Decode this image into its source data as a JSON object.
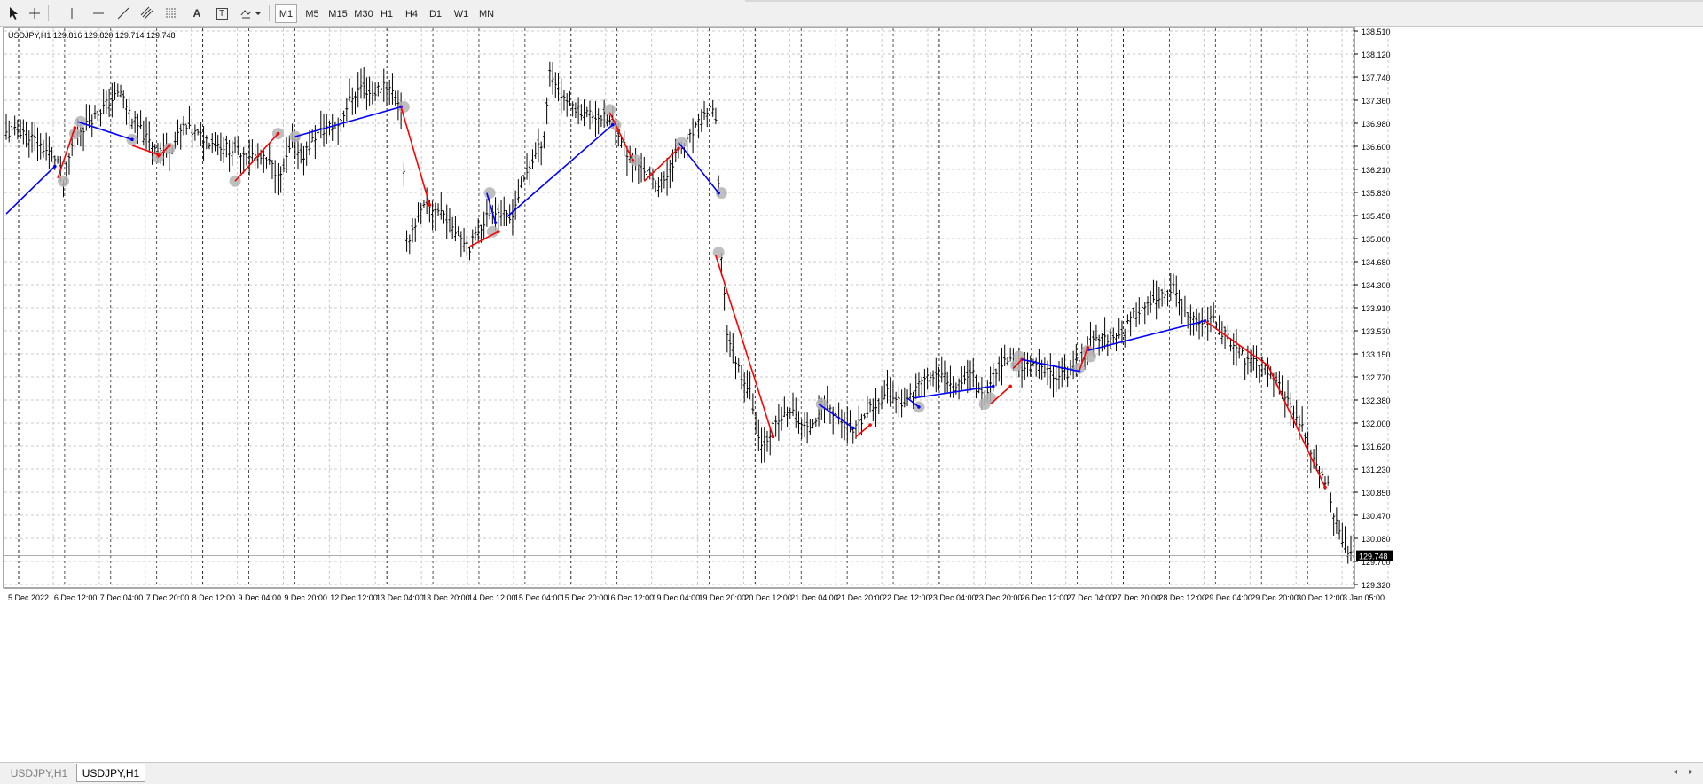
{
  "toolbar": {
    "tools": [
      {
        "name": "cursor-tool-button",
        "icon": "cursor-arrow-icon"
      },
      {
        "name": "crosshair-tool-button",
        "icon": "crosshair-icon"
      },
      {
        "name": "vertical-line-tool-button",
        "icon": "vertical-line-icon"
      },
      {
        "name": "horizontal-line-tool-button",
        "icon": "horizontal-line-icon"
      },
      {
        "name": "trendline-tool-button",
        "icon": "trendline-icon"
      },
      {
        "name": "channels-tool-button",
        "icon": "channel-icon"
      },
      {
        "name": "fibonacci-tool-button",
        "icon": "fibonacci-icon"
      },
      {
        "name": "text-tool-button",
        "icon": "text-icon",
        "label": "A"
      },
      {
        "name": "text-label-tool-button",
        "icon": "text-label-icon",
        "label": "T"
      },
      {
        "name": "shapes-tool-button",
        "icon": "shapes-dropdown-icon"
      }
    ],
    "timeframes": [
      "M1",
      "M5",
      "M15",
      "M30",
      "H1",
      "H4",
      "D1",
      "W1",
      "MN"
    ],
    "active_timeframe": "M1"
  },
  "chart_info": {
    "symbol_line": "USDJPY,H1  129.816 129.820 129.714 129.748"
  },
  "colors": {
    "bear_leg": "#ff0000",
    "bull_leg": "#0000ff",
    "candle": "#000000",
    "marker": "#b4b4b4",
    "grid": "#c8c8c8",
    "price_tag_bg": "#000000"
  },
  "chart_data": {
    "type": "line",
    "symbol": "USDJPY",
    "timeframe": "H1",
    "price_axis_labels": [
      "138.510",
      "138.120",
      "137.740",
      "137.360",
      "136.980",
      "136.600",
      "136.210",
      "135.830",
      "135.450",
      "135.060",
      "134.680",
      "134.300",
      "133.910",
      "133.530",
      "133.150",
      "132.770",
      "132.380",
      "132.000",
      "131.620",
      "131.230",
      "130.850",
      "130.470",
      "130.080",
      "129.700",
      "129.320"
    ],
    "current_price_tag": "129.748",
    "current_price": 129.748,
    "ylim": [
      129.22,
      138.65
    ],
    "time_axis_labels": [
      "5 Dec 2022",
      "6 Dec 12:00",
      "7 Dec 04:00",
      "7 Dec 20:00",
      "8 Dec 12:00",
      "9 Dec 04:00",
      "9 Dec 20:00",
      "12 Dec 12:00",
      "13 Dec 04:00",
      "13 Dec 20:00",
      "14 Dec 12:00",
      "15 Dec 04:00",
      "15 Dec 20:00",
      "16 Dec 12:00",
      "19 Dec 04:00",
      "19 Dec 20:00",
      "20 Dec 12:00",
      "21 Dec 04:00",
      "21 Dec 20:00",
      "22 Dec 12:00",
      "23 Dec 04:00",
      "23 Dec 20:00",
      "26 Dec 12:00",
      "27 Dec 04:00",
      "27 Dec 20:00",
      "28 Dec 12:00",
      "29 Dec 04:00",
      "29 Dec 20:00",
      "30 Dec 12:00",
      "3 Jan 05:00"
    ],
    "x_range_bars": [
      0,
      470
    ],
    "price_path": [
      [
        0,
        136.85
      ],
      [
        6,
        136.9
      ],
      [
        12,
        136.65
      ],
      [
        18,
        136.4
      ],
      [
        20,
        136.0
      ],
      [
        24,
        136.85
      ],
      [
        28,
        137.0
      ],
      [
        34,
        137.3
      ],
      [
        40,
        137.55
      ],
      [
        44,
        137.1
      ],
      [
        50,
        136.7
      ],
      [
        55,
        136.55
      ],
      [
        58,
        136.65
      ],
      [
        62,
        136.95
      ],
      [
        70,
        136.75
      ],
      [
        78,
        136.6
      ],
      [
        82,
        136.55
      ],
      [
        88,
        136.45
      ],
      [
        92,
        136.35
      ],
      [
        96,
        136.1
      ],
      [
        100,
        136.7
      ],
      [
        104,
        136.5
      ],
      [
        108,
        136.8
      ],
      [
        112,
        136.95
      ],
      [
        116,
        137.0
      ],
      [
        120,
        137.4
      ],
      [
        124,
        137.65
      ],
      [
        128,
        137.5
      ],
      [
        132,
        137.7
      ],
      [
        136,
        137.5
      ],
      [
        138,
        137.3
      ],
      [
        140,
        135.0
      ],
      [
        142,
        135.25
      ],
      [
        146,
        135.6
      ],
      [
        152,
        135.55
      ],
      [
        158,
        135.2
      ],
      [
        162,
        134.95
      ],
      [
        166,
        135.3
      ],
      [
        170,
        135.6
      ],
      [
        176,
        135.4
      ],
      [
        182,
        136.2
      ],
      [
        188,
        136.8
      ],
      [
        190,
        137.9
      ],
      [
        194,
        137.5
      ],
      [
        200,
        137.25
      ],
      [
        206,
        137.15
      ],
      [
        210,
        137.1
      ],
      [
        214,
        136.9
      ],
      [
        218,
        136.4
      ],
      [
        222,
        136.3
      ],
      [
        226,
        136.05
      ],
      [
        230,
        136.0
      ],
      [
        234,
        136.5
      ],
      [
        238,
        136.7
      ],
      [
        242,
        137.0
      ],
      [
        246,
        137.3
      ],
      [
        248,
        137.05
      ],
      [
        250,
        134.8
      ],
      [
        252,
        133.5
      ],
      [
        256,
        132.9
      ],
      [
        260,
        132.5
      ],
      [
        264,
        131.6
      ],
      [
        268,
        131.9
      ],
      [
        274,
        132.2
      ],
      [
        280,
        131.85
      ],
      [
        286,
        132.35
      ],
      [
        292,
        132.0
      ],
      [
        296,
        131.8
      ],
      [
        302,
        132.2
      ],
      [
        308,
        132.5
      ],
      [
        314,
        132.3
      ],
      [
        320,
        132.7
      ],
      [
        326,
        132.8
      ],
      [
        332,
        132.65
      ],
      [
        338,
        132.85
      ],
      [
        342,
        132.4
      ],
      [
        346,
        132.9
      ],
      [
        350,
        133.05
      ],
      [
        354,
        132.95
      ],
      [
        360,
        132.9
      ],
      [
        366,
        132.8
      ],
      [
        372,
        132.85
      ],
      [
        376,
        133.2
      ],
      [
        382,
        133.4
      ],
      [
        390,
        133.5
      ],
      [
        396,
        133.9
      ],
      [
        402,
        134.0
      ],
      [
        408,
        134.25
      ],
      [
        412,
        133.8
      ],
      [
        416,
        133.65
      ],
      [
        422,
        133.7
      ],
      [
        428,
        133.35
      ],
      [
        434,
        133.0
      ],
      [
        440,
        132.95
      ],
      [
        446,
        132.55
      ],
      [
        450,
        132.1
      ],
      [
        454,
        131.8
      ],
      [
        458,
        131.25
      ],
      [
        462,
        130.9
      ],
      [
        466,
        130.1
      ],
      [
        470,
        129.75
      ]
    ],
    "zigzag_legs": [
      {
        "color": "blue",
        "from": [
          0,
          135.5
        ],
        "to": [
          17,
          136.3
        ]
      },
      {
        "color": "red",
        "from": [
          18,
          136.1
        ],
        "to": [
          24,
          136.95
        ]
      },
      {
        "color": "blue",
        "from": [
          25,
          137.05
        ],
        "to": [
          44,
          136.75
        ]
      },
      {
        "color": "red",
        "from": [
          44,
          136.65
        ],
        "to": [
          53,
          136.5
        ]
      },
      {
        "color": "red",
        "from": [
          53,
          136.45
        ],
        "to": [
          57,
          136.65
        ]
      },
      {
        "color": "red",
        "from": [
          80,
          136.05
        ],
        "to": [
          95,
          136.85
        ]
      },
      {
        "color": "blue",
        "from": [
          101,
          136.8
        ],
        "to": [
          138,
          137.3
        ]
      },
      {
        "color": "red",
        "from": [
          138,
          137.3
        ],
        "to": [
          148,
          135.65
        ]
      },
      {
        "color": "red",
        "from": [
          162,
          134.95
        ],
        "to": [
          172,
          135.2
        ]
      },
      {
        "color": "blue",
        "from": [
          168,
          135.85
        ],
        "to": [
          171,
          135.35
        ]
      },
      {
        "color": "blue",
        "from": [
          175,
          135.45
        ],
        "to": [
          212,
          137.0
        ]
      },
      {
        "color": "red",
        "from": [
          211,
          137.2
        ],
        "to": [
          214,
          136.9
        ]
      },
      {
        "color": "red",
        "from": [
          214,
          136.9
        ],
        "to": [
          219,
          136.4
        ]
      },
      {
        "color": "red",
        "from": [
          223,
          136.05
        ],
        "to": [
          235,
          136.6
        ]
      },
      {
        "color": "blue",
        "from": [
          235,
          136.7
        ],
        "to": [
          249,
          135.85
        ]
      },
      {
        "color": "red",
        "from": [
          248,
          134.8
        ],
        "to": [
          268,
          131.75
        ]
      },
      {
        "color": "blue",
        "from": [
          284,
          132.3
        ],
        "to": [
          296,
          131.9
        ]
      },
      {
        "color": "red",
        "from": [
          297,
          131.75
        ],
        "to": [
          302,
          131.95
        ]
      },
      {
        "color": "blue",
        "from": [
          315,
          132.4
        ],
        "to": [
          319,
          132.25
        ]
      },
      {
        "color": "blue",
        "from": [
          317,
          132.4
        ],
        "to": [
          345,
          132.6
        ]
      },
      {
        "color": "red",
        "from": [
          344,
          132.3
        ],
        "to": [
          351,
          132.6
        ]
      },
      {
        "color": "red",
        "from": [
          352,
          132.9
        ],
        "to": [
          355,
          133.05
        ]
      },
      {
        "color": "blue",
        "from": [
          355,
          133.05
        ],
        "to": [
          375,
          132.85
        ]
      },
      {
        "color": "red",
        "from": [
          375,
          132.85
        ],
        "to": [
          378,
          133.25
        ]
      },
      {
        "color": "blue",
        "from": [
          378,
          133.2
        ],
        "to": [
          419,
          133.7
        ]
      },
      {
        "color": "red",
        "from": [
          419,
          133.7
        ],
        "to": [
          441,
          132.95
        ]
      },
      {
        "color": "red",
        "from": [
          441,
          132.95
        ],
        "to": [
          461,
          130.9
        ]
      }
    ],
    "markers": [
      [
        20,
        136.05
      ],
      [
        24,
        136.85
      ],
      [
        26,
        137.05
      ],
      [
        44,
        136.75
      ],
      [
        53,
        136.45
      ],
      [
        57,
        136.6
      ],
      [
        80,
        136.05
      ],
      [
        95,
        136.85
      ],
      [
        101,
        136.8
      ],
      [
        139,
        137.3
      ],
      [
        169,
        135.85
      ],
      [
        170,
        135.2
      ],
      [
        211,
        137.25
      ],
      [
        213,
        137.0
      ],
      [
        220,
        136.4
      ],
      [
        236,
        136.7
      ],
      [
        250,
        135.85
      ],
      [
        249,
        134.85
      ],
      [
        285,
        132.3
      ],
      [
        319,
        132.25
      ],
      [
        344,
        132.4
      ],
      [
        342,
        132.3
      ],
      [
        353,
        132.95
      ],
      [
        354,
        133.1
      ],
      [
        375,
        132.9
      ],
      [
        378,
        133.2
      ],
      [
        379,
        133.1
      ]
    ]
  },
  "tabs": {
    "items": [
      "USDJPY,H1",
      "USDJPY,H1"
    ],
    "active_index": 1
  },
  "scroll": {
    "left_arrow": "◂",
    "right_arrow": "▸"
  }
}
